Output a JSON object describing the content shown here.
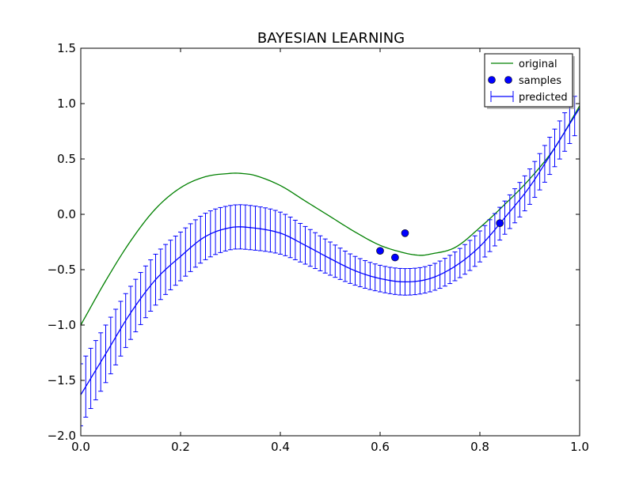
{
  "chart_data": {
    "type": "line",
    "title": "BAYESIAN LEARNING",
    "xlabel": "",
    "ylabel": "",
    "xlim": [
      0.0,
      1.0
    ],
    "ylim": [
      -2.0,
      1.5
    ],
    "x_ticks": [
      "0.0",
      "0.2",
      "0.4",
      "0.6",
      "0.8",
      "1.0"
    ],
    "y_ticks": [
      "1.5",
      "1.0",
      "0.5",
      "0.0",
      "−0.5",
      "−1.0",
      "−1.5",
      "−2.0"
    ],
    "grid": false,
    "legend_position": "top-right",
    "series": [
      {
        "name": "original",
        "kind": "line",
        "color": "#008000",
        "x": [
          0.0,
          0.05,
          0.1,
          0.15,
          0.2,
          0.25,
          0.3,
          0.32,
          0.35,
          0.4,
          0.45,
          0.5,
          0.55,
          0.6,
          0.65,
          0.68,
          0.7,
          0.75,
          0.8,
          0.85,
          0.9,
          0.95,
          1.0
        ],
        "y": [
          -1.0,
          -0.6,
          -0.24,
          0.05,
          0.24,
          0.34,
          0.37,
          0.37,
          0.35,
          0.26,
          0.12,
          -0.02,
          -0.16,
          -0.28,
          -0.35,
          -0.37,
          -0.36,
          -0.3,
          -0.12,
          0.09,
          0.32,
          0.6,
          0.98
        ]
      },
      {
        "name": "samples",
        "kind": "scatter",
        "color": "#0000ff",
        "x": [
          0.6,
          0.63,
          0.65,
          0.84
        ],
        "y": [
          -0.33,
          -0.39,
          -0.17,
          -0.08
        ]
      },
      {
        "name": "predicted",
        "kind": "errorbar",
        "color": "#0000ff",
        "x": [
          0.0,
          0.05,
          0.1,
          0.15,
          0.2,
          0.25,
          0.3,
          0.34,
          0.4,
          0.45,
          0.5,
          0.55,
          0.6,
          0.65,
          0.7,
          0.75,
          0.8,
          0.85,
          0.9,
          0.95,
          1.0
        ],
        "y": [
          -1.63,
          -1.26,
          -0.89,
          -0.59,
          -0.38,
          -0.2,
          -0.12,
          -0.12,
          -0.17,
          -0.28,
          -0.4,
          -0.51,
          -0.58,
          -0.61,
          -0.58,
          -0.47,
          -0.29,
          -0.03,
          0.25,
          0.6,
          0.96
        ],
        "err": [
          0.28,
          0.26,
          0.24,
          0.23,
          0.22,
          0.21,
          0.2,
          0.2,
          0.19,
          0.17,
          0.15,
          0.13,
          0.12,
          0.12,
          0.12,
          0.13,
          0.14,
          0.15,
          0.16,
          0.17,
          0.18
        ]
      }
    ]
  }
}
